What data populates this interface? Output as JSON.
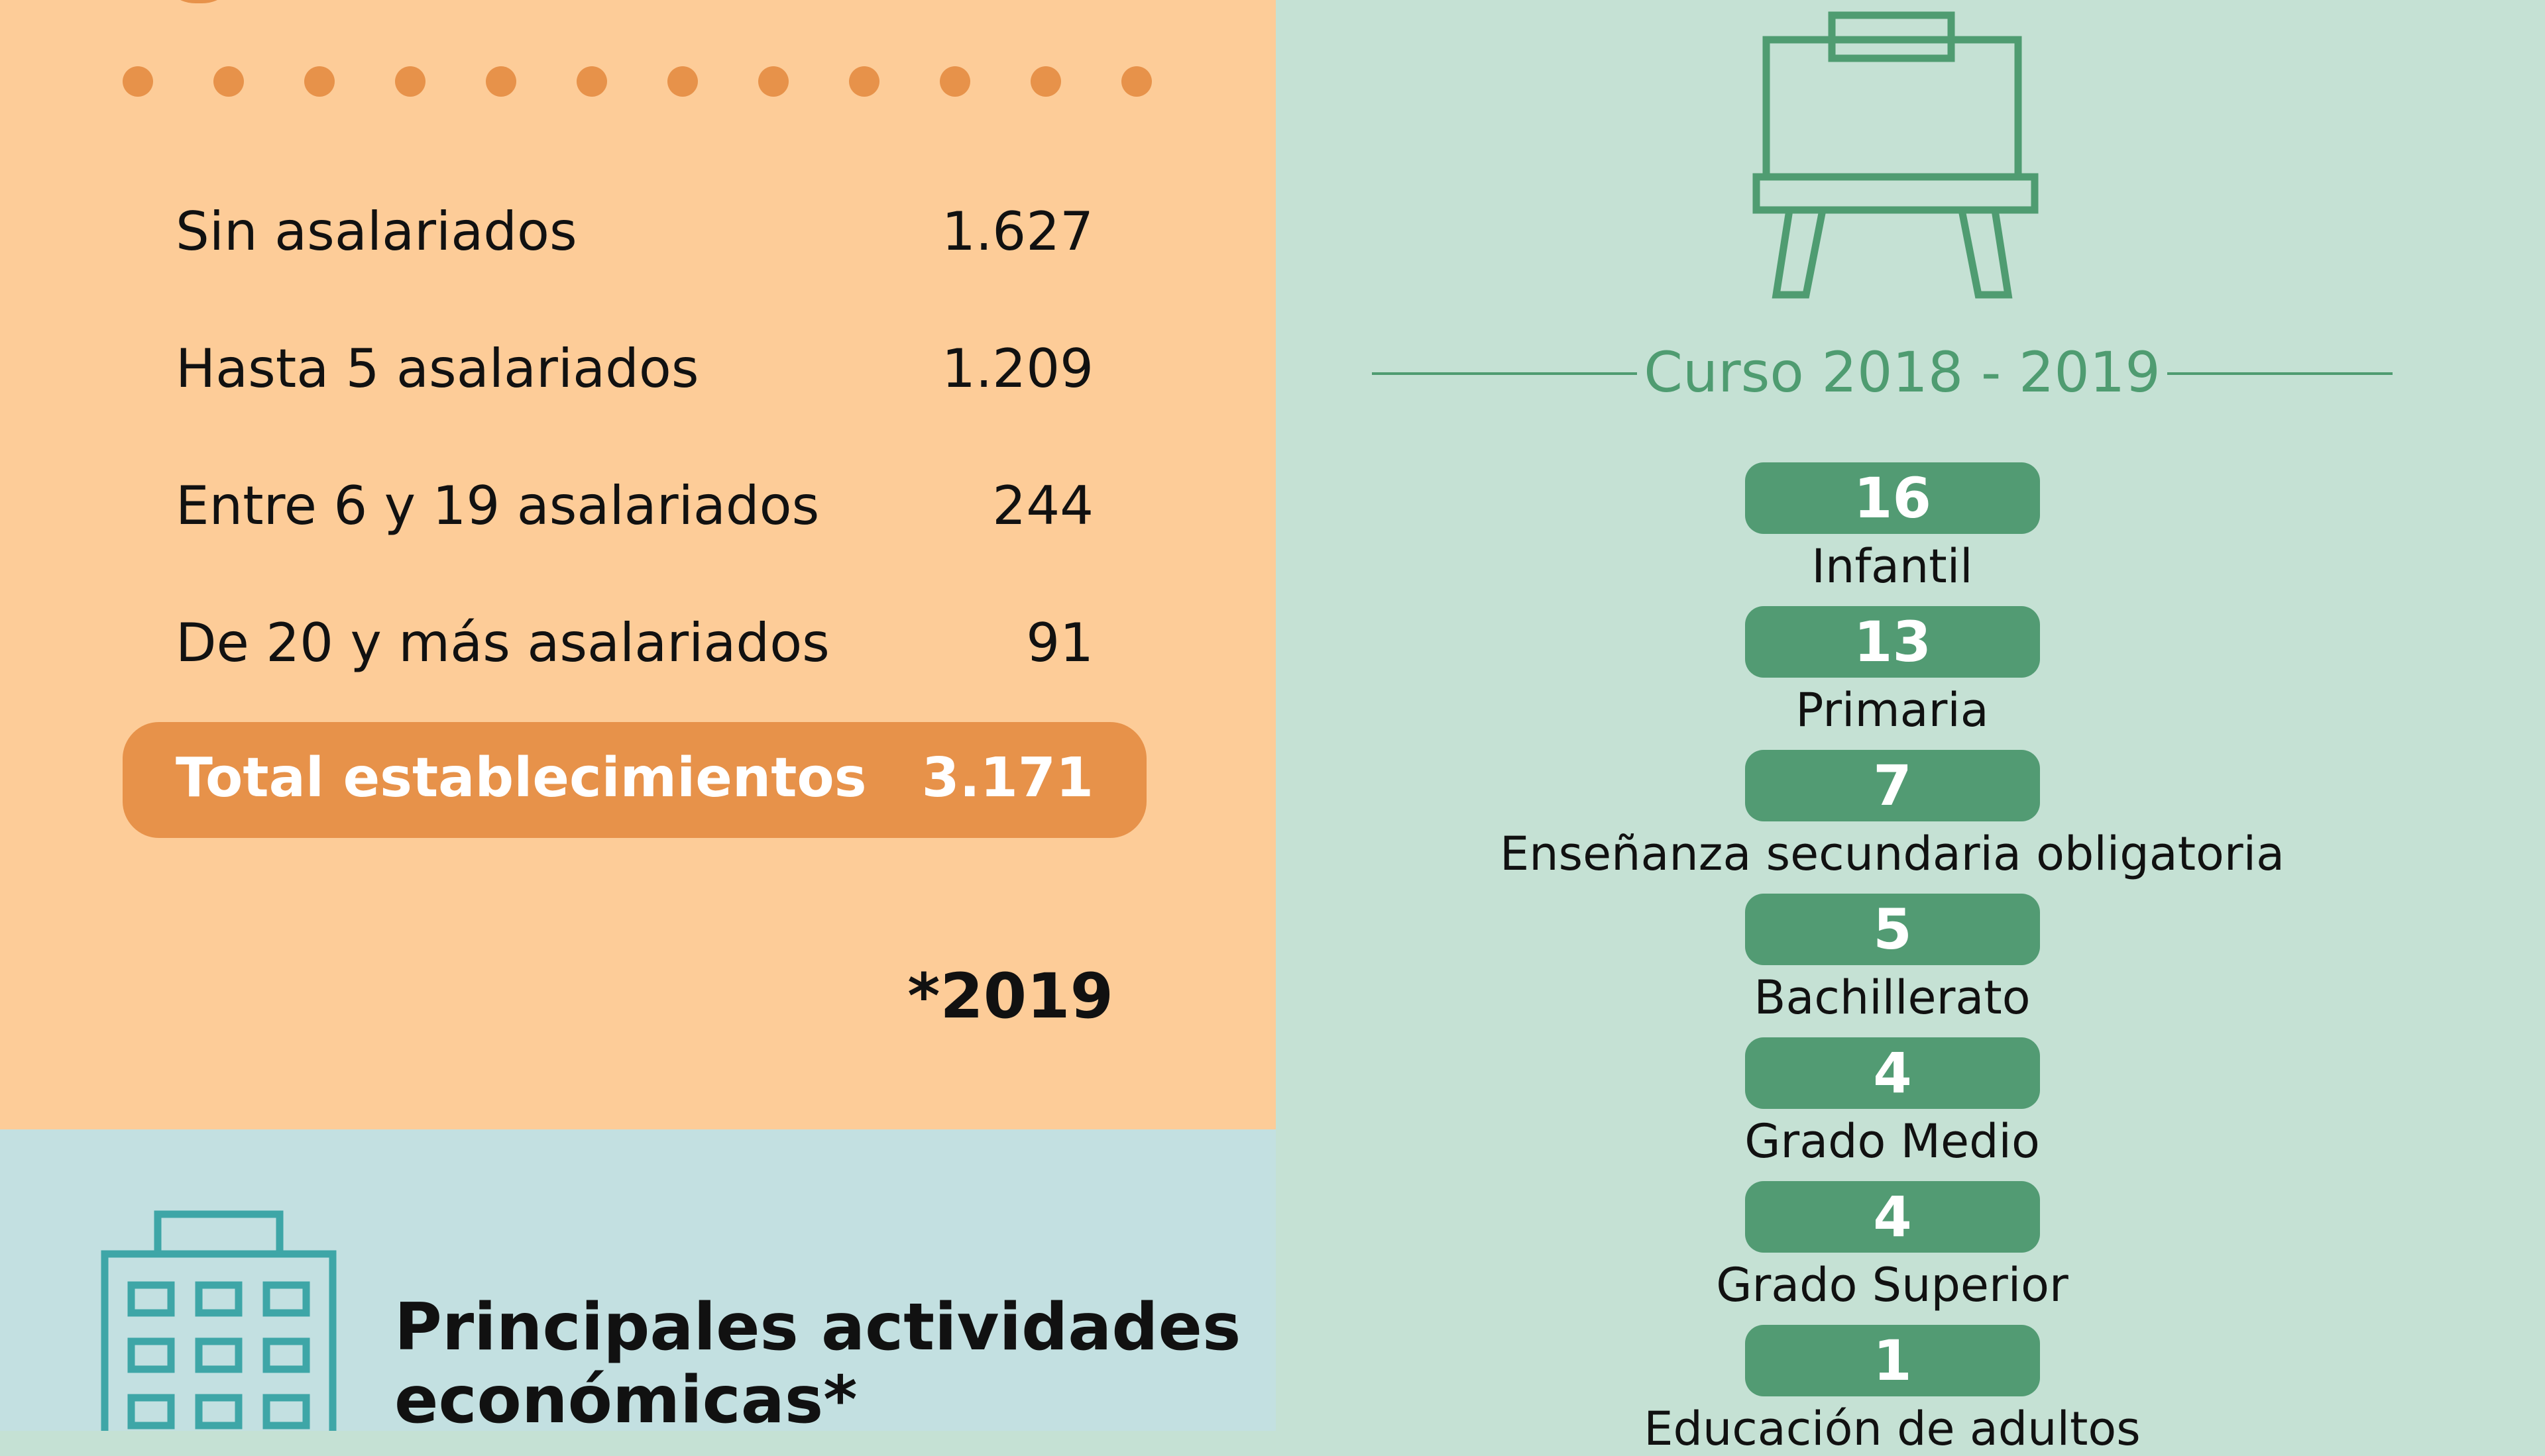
{
  "establishments": {
    "rows": [
      {
        "label": "Sin asalariados",
        "value": "1.627"
      },
      {
        "label": "Hasta 5 asalariados",
        "value": "1.209"
      },
      {
        "label": "Entre 6 y 19 asalariados",
        "value": "244"
      },
      {
        "label": "De 20 y más asalariados",
        "value": "91"
      }
    ],
    "total": {
      "label": "Total establecimientos",
      "value": "3.171"
    },
    "year_note": "*2019"
  },
  "activities": {
    "title_line1": "Principales actividades",
    "title_line2": "económicas*"
  },
  "education": {
    "course": "Curso 2018 - 2019",
    "levels": [
      {
        "count": "16",
        "label": "Infantil"
      },
      {
        "count": "13",
        "label": "Primaria"
      },
      {
        "count": "7",
        "label": "Enseñanza secundaria obligatoria"
      },
      {
        "count": "5",
        "label": "Bachillerato"
      },
      {
        "count": "4",
        "label": "Grado Medio"
      },
      {
        "count": "4",
        "label": "Grado Superior"
      },
      {
        "count": "1",
        "label": "Educación de adultos"
      }
    ]
  },
  "icons": {
    "building": "building-icon",
    "board": "whiteboard-easel-icon"
  },
  "colors": {
    "orange_bg": "#fdcc98",
    "orange_accent": "#e7924a",
    "teal_bg": "#c3e0e1",
    "green_bg": "#c5e1d4",
    "green_accent": "#529b73"
  }
}
